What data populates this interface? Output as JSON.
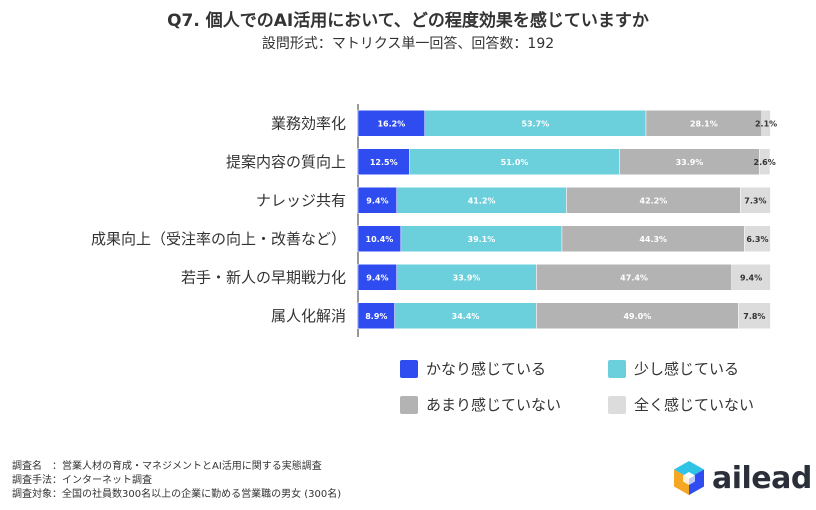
{
  "header": {
    "title": "Q7. 個人でのAI活用において、どの程度効果を感じていますか",
    "subtitle": "設問形式：マトリクス単一回答、回答数：192"
  },
  "chart_data": {
    "type": "bar",
    "orientation": "horizontal",
    "stacked": true,
    "percent": true,
    "categories": [
      "業務効率化",
      "提案内容の質向上",
      "ナレッジ共有",
      "成果向上（受注率の向上・改善など）",
      "若手・新人の早期戦力化",
      "属人化解消"
    ],
    "series": [
      {
        "name": "かなり感じている",
        "color": "#2e4cf0",
        "values": [
          16.2,
          12.5,
          9.4,
          10.4,
          9.4,
          8.9
        ],
        "labels": [
          "16.2%",
          "12.5%",
          "9.4%",
          "10.4%",
          "9.4%",
          "8.9%"
        ]
      },
      {
        "name": "少し感じている",
        "color": "#6bcfdc",
        "values": [
          53.7,
          51.0,
          41.2,
          39.1,
          33.9,
          34.4
        ],
        "labels": [
          "53.7%",
          "51.0%",
          "41.2%",
          "39.1%",
          "33.9%",
          "34.4%"
        ]
      },
      {
        "name": "あまり感じていない",
        "color": "#b3b3b3",
        "values": [
          28.1,
          33.9,
          42.2,
          44.3,
          47.4,
          49.0
        ],
        "labels": [
          "28.1%",
          "33.9%",
          "42.2%",
          "44.3%",
          "47.4%",
          "49.0%"
        ]
      },
      {
        "name": "全く感じていない",
        "color": "#dcdcdc",
        "values": [
          2.1,
          2.6,
          7.3,
          6.3,
          9.4,
          7.8
        ],
        "labels": [
          "2.1%",
          "2.6%",
          "7.3%",
          "6.3%",
          "9.4%",
          "7.8%"
        ]
      }
    ],
    "xlim": [
      0,
      100
    ],
    "grid": false,
    "legend": "bottom"
  },
  "footer": {
    "lines": [
      "調査名　：営業人材の育成・マネジメントとAI活用に関する実態調査",
      "調査手法：インターネット調査",
      "調査対象：全国の社員数300名以上の企業に勤める営業職の男女 (300名)"
    ]
  },
  "logo": {
    "text": "ailead"
  }
}
